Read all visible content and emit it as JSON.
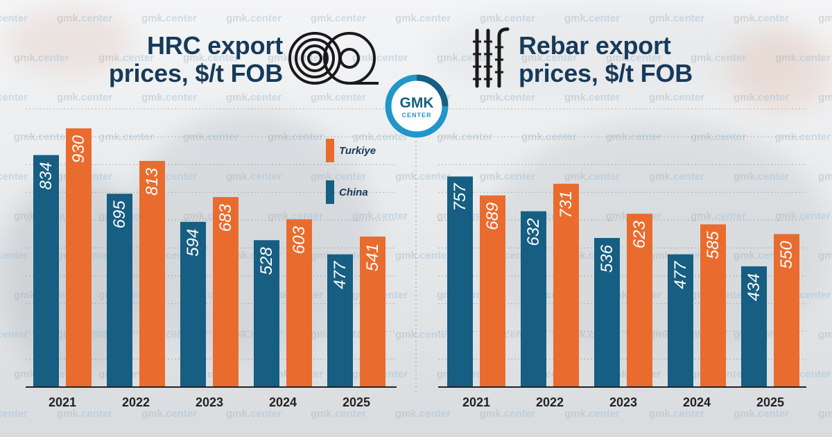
{
  "colors": {
    "china": "#165e82",
    "turkiye": "#ea6b2e",
    "title": "#163a5a"
  },
  "watermark_text": {
    "a": "gmk.",
    "b": "center"
  },
  "logo": {
    "line1": "GMK",
    "line2": "CENTER"
  },
  "legend": [
    {
      "key": "turkiye",
      "label": "Turkiye"
    },
    {
      "key": "china",
      "label": "China"
    }
  ],
  "hrc": {
    "title_line1": "HRC export",
    "title_line2": "prices, $/t FOB",
    "icon": "steel-coil-icon"
  },
  "rebar": {
    "title_line1": "Rebar export",
    "title_line2": "prices, $/t FOB",
    "icon": "rebar-icon"
  },
  "chart_data": [
    {
      "type": "bar",
      "title": "HRC export prices, $/t FOB",
      "categories": [
        "2021",
        "2022",
        "2023",
        "2024",
        "2025"
      ],
      "series": [
        {
          "name": "China",
          "values": [
            834,
            695,
            594,
            528,
            477
          ]
        },
        {
          "name": "Turkiye",
          "values": [
            930,
            813,
            683,
            603,
            541
          ]
        }
      ],
      "ylim": [
        0,
        1000
      ],
      "grid": true
    },
    {
      "type": "bar",
      "title": "Rebar export prices, $/t FOB",
      "categories": [
        "2021",
        "2022",
        "2023",
        "2024",
        "2025"
      ],
      "series": [
        {
          "name": "China",
          "values": [
            757,
            632,
            536,
            477,
            434
          ]
        },
        {
          "name": "Turkiye",
          "values": [
            689,
            731,
            623,
            585,
            550
          ]
        }
      ],
      "ylim": [
        0,
        1000
      ],
      "grid": true
    }
  ]
}
